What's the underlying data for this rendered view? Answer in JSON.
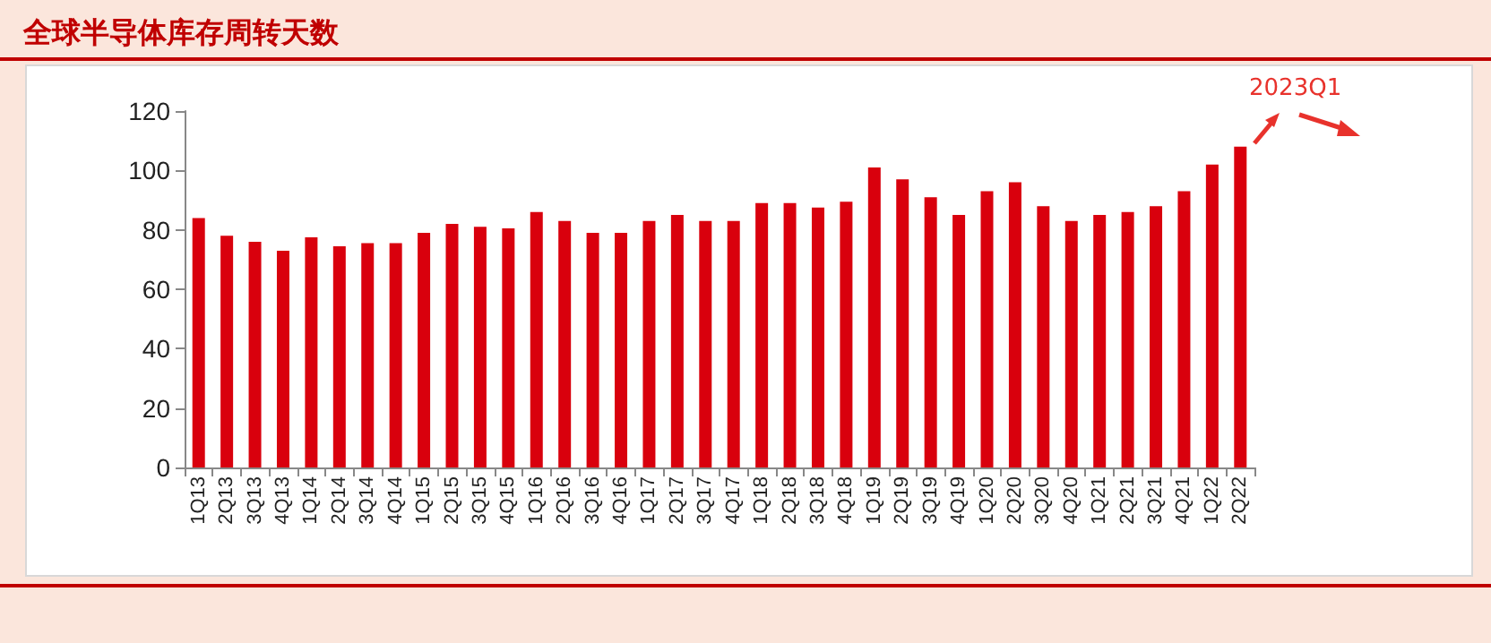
{
  "chart_data": {
    "type": "bar",
    "title": "全球半导体库存周转天数",
    "categories": [
      "1Q13",
      "2Q13",
      "3Q13",
      "4Q13",
      "1Q14",
      "2Q14",
      "3Q14",
      "4Q14",
      "1Q15",
      "2Q15",
      "3Q15",
      "4Q15",
      "1Q16",
      "2Q16",
      "3Q16",
      "4Q16",
      "1Q17",
      "2Q17",
      "3Q17",
      "4Q17",
      "1Q18",
      "2Q18",
      "3Q18",
      "4Q18",
      "1Q19",
      "2Q19",
      "3Q19",
      "4Q19",
      "1Q20",
      "2Q20",
      "3Q20",
      "4Q20",
      "1Q21",
      "2Q21",
      "3Q21",
      "4Q21",
      "1Q22",
      "2Q22"
    ],
    "values": [
      84,
      78,
      76,
      73,
      77.5,
      74.5,
      75.5,
      75.5,
      79,
      82,
      81,
      80.5,
      86,
      83,
      79,
      79,
      83,
      85,
      83,
      83,
      89,
      89,
      87.5,
      89.5,
      101,
      97,
      91,
      85,
      93,
      96,
      88,
      83,
      85,
      86,
      88,
      93,
      102,
      108
    ],
    "color": "#d9000d",
    "ylim": [
      0,
      120
    ],
    "yticks": [
      0,
      20,
      40,
      60,
      80,
      100,
      120
    ],
    "grid": false,
    "annotations": [
      "2023Q1"
    ]
  }
}
